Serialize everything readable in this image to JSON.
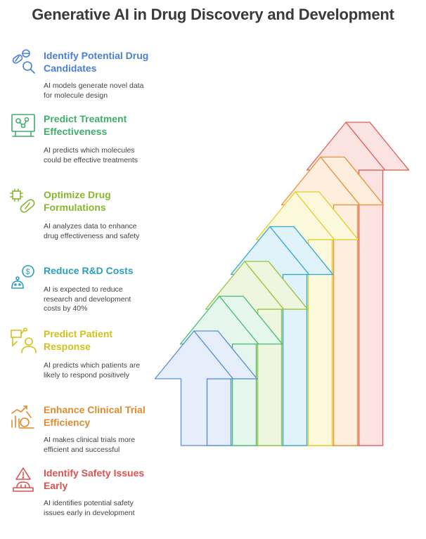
{
  "title": "Generative AI in Drug Discovery and Development",
  "items": [
    {
      "heading": "Identify Potential Drug Candidates",
      "description": "AI models generate novel data for molecule design",
      "color": "#4a7fd4",
      "icon": "pill-magnifier-icon"
    },
    {
      "heading": "Predict Treatment Effectiveness",
      "description": "AI predicts which molecules could be effective treatments",
      "color": "#3fae6a",
      "icon": "molecule-screen-icon"
    },
    {
      "heading": "Optimize Drug Formulations",
      "description": "AI analyzes data to enhance drug effectiveness and safety",
      "color": "#88b62c",
      "icon": "chip-capsule-icon"
    },
    {
      "heading": "Reduce R&D Costs",
      "description": "AI is expected to reduce research and development costs by 40%",
      "color": "#2a9fc4",
      "icon": "robot-dollar-icon"
    },
    {
      "heading": "Predict Patient Response",
      "description": "AI predicts which patients are likely to respond positively",
      "color": "#d2c11a",
      "icon": "patient-ai-icon"
    },
    {
      "heading": "Enhance Clinical Trial Efficiency",
      "description": "AI makes clinical trials more efficient and successful",
      "color": "#e08a2c",
      "icon": "microscope-chart-icon"
    },
    {
      "heading": "Identify Safety Issues Early",
      "description": "AI identifies potential safety issues early in development",
      "color": "#d9534f",
      "icon": "warning-alarm-icon"
    }
  ],
  "arrow_colors": [
    {
      "stroke": "#5b8fd6",
      "fill": "#e6eefb"
    },
    {
      "stroke": "#4dbb78",
      "fill": "#e5f6ec"
    },
    {
      "stroke": "#98c43c",
      "fill": "#eef6df"
    },
    {
      "stroke": "#35a9cf",
      "fill": "#e1f3fa"
    },
    {
      "stroke": "#e2cf2a",
      "fill": "#fcf8dc"
    },
    {
      "stroke": "#e8923a",
      "fill": "#fdeedd"
    },
    {
      "stroke": "#e0605c",
      "fill": "#fbe3e2"
    }
  ]
}
